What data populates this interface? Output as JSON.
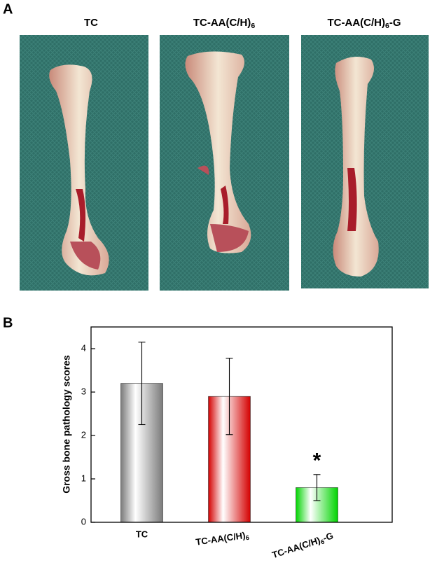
{
  "panel_a": {
    "label": "A",
    "photo_titles": [
      "TC",
      "TC-AA(C/H)6",
      "TC-AA(C/H)6-G"
    ]
  },
  "panel_b_label": "B",
  "chart_data": {
    "type": "bar",
    "ylabel": "Gross bone pathology scores",
    "categories": [
      "TC",
      "TC-AA(C/H)6",
      "TC-AA(C/H)6-G"
    ],
    "values": [
      3.2,
      2.9,
      0.8
    ],
    "errors": [
      0.95,
      0.88,
      0.3
    ],
    "colors": [
      "#7a7a7a",
      "#d40000",
      "#00d400"
    ],
    "ylim": [
      0,
      4.5
    ],
    "yticks": [
      0,
      1,
      2,
      3,
      4
    ],
    "annotations": [
      {
        "text": "*",
        "category": 2
      }
    ]
  }
}
